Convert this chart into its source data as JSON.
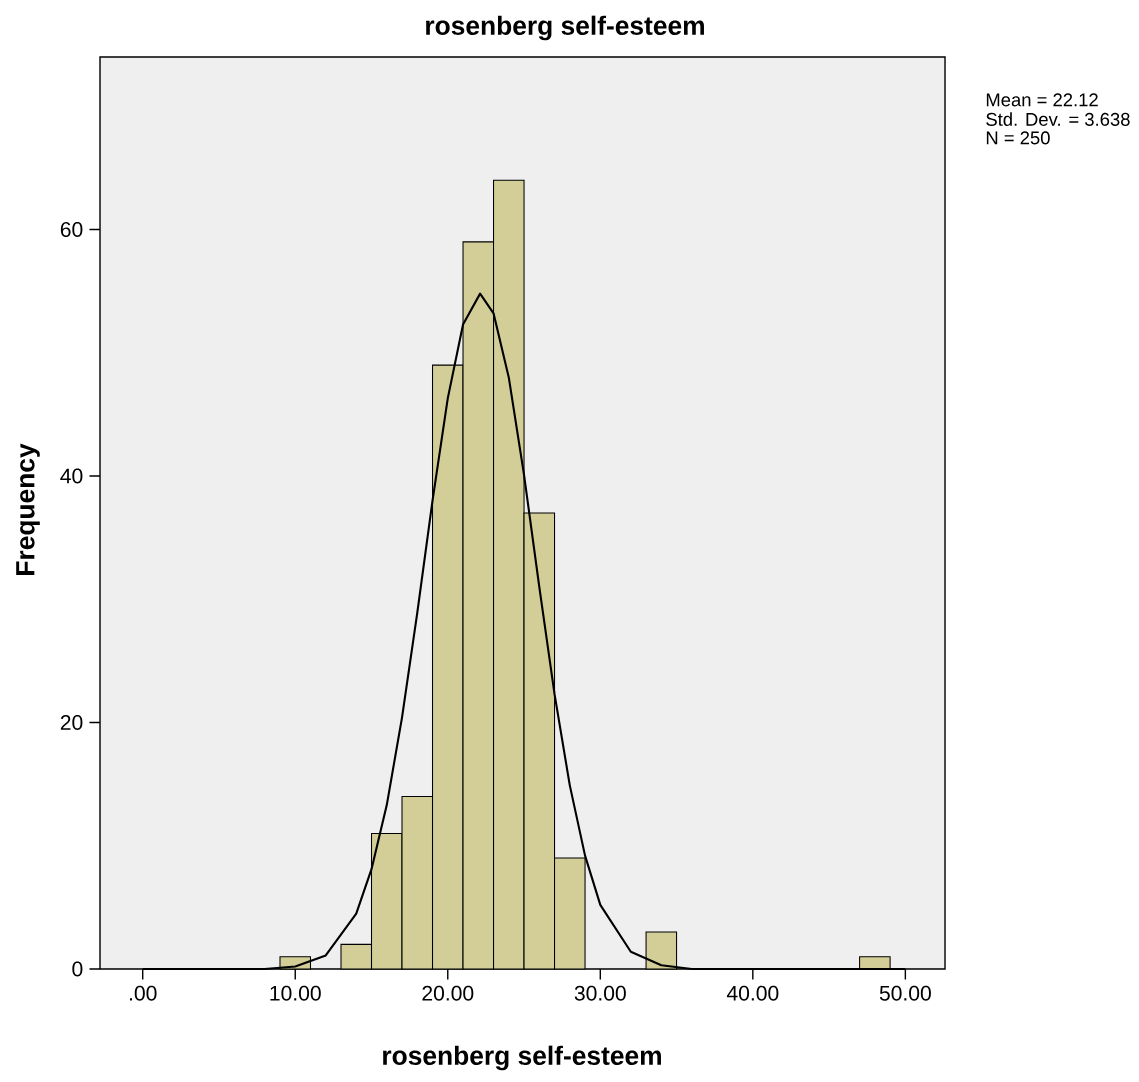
{
  "chart_data": {
    "type": "histogram",
    "title": "rosenberg self-esteem",
    "xlabel": "rosenberg self-esteem",
    "ylabel": "Frequency",
    "series": [
      {
        "color": "#d3ce97",
        "bins": [
          9,
          11,
          13,
          15,
          17,
          19,
          21,
          23,
          25,
          27,
          29,
          31,
          33,
          35,
          37,
          39,
          41,
          43,
          45,
          47,
          49
        ],
        "values": [
          1,
          0,
          2,
          11,
          14,
          49,
          59,
          64,
          37,
          9,
          0,
          0,
          3,
          0,
          0,
          0,
          0,
          0,
          0,
          1
        ]
      },
      {
        "type": "line",
        "color": "#000000",
        "x": [
          0,
          5,
          8,
          10,
          12,
          14,
          15,
          16,
          17,
          18,
          19,
          20,
          21,
          22.12,
          23,
          24,
          25,
          26,
          27,
          28,
          29,
          30,
          32,
          34,
          36,
          40,
          45,
          50
        ],
        "values": [
          0,
          0,
          0,
          0.2,
          1.1,
          4.5,
          8.1,
          13.3,
          20.4,
          28.9,
          38,
          46.3,
          52.3,
          54.8,
          53.2,
          48,
          40.1,
          31,
          22.3,
          14.9,
          9.2,
          5.2,
          1.4,
          0.3,
          0,
          0,
          0,
          0
        ]
      }
    ],
    "xlim": [
      -2.8,
      52.6
    ],
    "ylim": [
      0,
      74
    ],
    "xticks": [
      {
        "value": 0,
        "label": ".00"
      },
      {
        "value": 10,
        "label": "10.00"
      },
      {
        "value": 20,
        "label": "20.00"
      },
      {
        "value": 30,
        "label": "30.00"
      },
      {
        "value": 40,
        "label": "40.00"
      },
      {
        "value": 50,
        "label": "50.00"
      }
    ],
    "yticks": [
      0,
      20,
      40,
      60
    ],
    "annotations": [
      "Mean = 22.12",
      "Std. Dev. = 3.638",
      "N = 250"
    ]
  }
}
